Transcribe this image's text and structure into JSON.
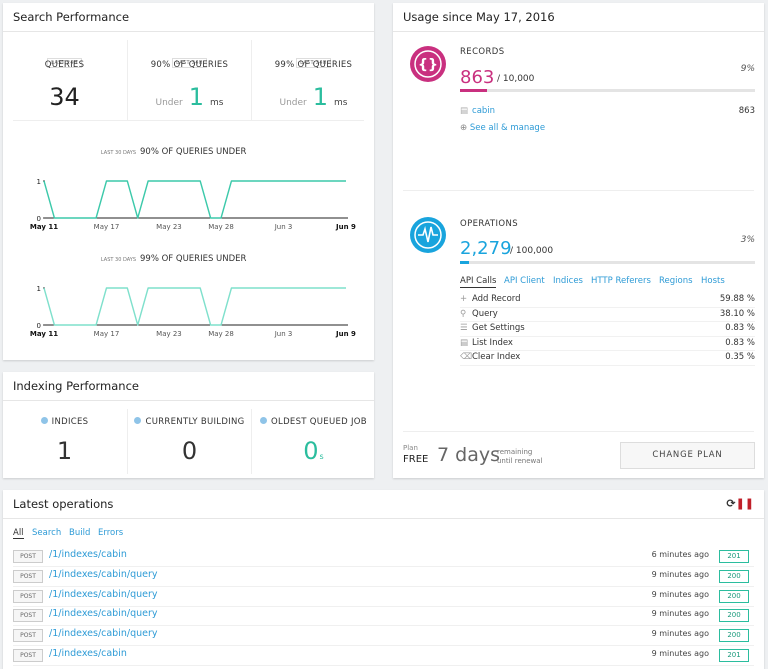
{
  "search": {
    "title": "Search Performance",
    "stats": [
      {
        "badge": "LAST 24H",
        "label": "QUERIES",
        "value": "34"
      },
      {
        "badge": "LAST 24H",
        "label": "90% OF QUERIES",
        "prefix": "Under",
        "value": "1",
        "unit": "ms"
      },
      {
        "badge": "LAST 24H",
        "label": "99% OF QUERIES",
        "prefix": "Under",
        "value": "1",
        "unit": "ms"
      }
    ]
  },
  "chart_data": [
    {
      "type": "line",
      "badge": "LAST 30 DAYS",
      "title": "90% OF QUERIES UNDER",
      "color": "#3cc9aa",
      "categories": [
        "May 11",
        null,
        null,
        null,
        null,
        null,
        "May 17",
        null,
        null,
        null,
        null,
        null,
        "May 23",
        null,
        null,
        null,
        null,
        "May 28",
        null,
        null,
        null,
        null,
        null,
        "Jun 3",
        null,
        null,
        null,
        null,
        null,
        "Jun 9"
      ],
      "values": [
        1,
        0,
        0,
        0,
        0,
        0,
        1,
        1,
        1,
        0,
        1,
        1,
        1,
        1,
        1,
        1,
        0,
        0,
        1,
        1,
        1,
        1,
        1,
        1,
        1,
        1,
        1,
        1,
        1,
        1
      ],
      "ylim": [
        0,
        1
      ],
      "yticks": [
        0,
        1
      ]
    },
    {
      "type": "line",
      "badge": "LAST 30 DAYS",
      "title": "99% OF QUERIES UNDER",
      "color": "#7fe0cc",
      "categories": [
        "May 11",
        null,
        null,
        null,
        null,
        null,
        "May 17",
        null,
        null,
        null,
        null,
        null,
        "May 23",
        null,
        null,
        null,
        null,
        "May 28",
        null,
        null,
        null,
        null,
        null,
        "Jun 3",
        null,
        null,
        null,
        null,
        null,
        "Jun 9"
      ],
      "values": [
        1,
        0,
        0,
        0,
        0,
        0,
        1,
        1,
        1,
        0,
        1,
        1,
        1,
        1,
        1,
        1,
        0,
        0,
        1,
        1,
        1,
        1,
        1,
        1,
        1,
        1,
        1,
        1,
        1,
        1
      ],
      "ylim": [
        0,
        1
      ],
      "yticks": [
        0,
        1
      ]
    }
  ],
  "indexing": {
    "title": "Indexing Performance",
    "stats": [
      {
        "label": "INDICES",
        "value": "1"
      },
      {
        "label": "CURRENTLY BUILDING",
        "value": "0"
      },
      {
        "label": "OLDEST QUEUED JOB",
        "value": "0",
        "unit": "s"
      }
    ]
  },
  "usage": {
    "title": "Usage since May 17, 2016",
    "records": {
      "label": "RECORDS",
      "count": "863",
      "limit": "/ 10,000",
      "percent": {
        "value": 9,
        "label": "9%"
      },
      "indices": [
        {
          "name": "cabin",
          "count": "863"
        }
      ],
      "link": "See all & manage"
    },
    "operations": {
      "label": "OPERATIONS",
      "count": "2,279",
      "limit": "/ 100,000",
      "percent": {
        "value": 3,
        "label": "3%"
      },
      "tabs": [
        "API Calls",
        "API Client",
        "Indices",
        "HTTP Referers",
        "Regions",
        "Hosts"
      ],
      "rows": [
        {
          "name": "Add Record",
          "share": "59.88 %"
        },
        {
          "name": "Query",
          "share": "38.10 %"
        },
        {
          "name": "Get Settings",
          "share": "0.83 %"
        },
        {
          "name": "List Index",
          "share": "0.83 %"
        },
        {
          "name": "Clear Index",
          "share": "0.35 %"
        }
      ]
    },
    "plan": {
      "label": "Plan",
      "name": "FREE",
      "days": "7 days",
      "remaining": "remaining",
      "renewal": "until renewal",
      "button": "CHANGE PLAN"
    }
  },
  "operations_log": {
    "title": "Latest operations",
    "tabs": [
      "All",
      "Search",
      "Build",
      "Errors"
    ],
    "rows": [
      {
        "method": "POST",
        "path": "/1/indexes/cabin",
        "time": "6 minutes ago",
        "status": "201"
      },
      {
        "method": "POST",
        "path": "/1/indexes/cabin/query",
        "time": "9 minutes ago",
        "status": "200"
      },
      {
        "method": "POST",
        "path": "/1/indexes/cabin/query",
        "time": "9 minutes ago",
        "status": "200"
      },
      {
        "method": "POST",
        "path": "/1/indexes/cabin/query",
        "time": "9 minutes ago",
        "status": "200"
      },
      {
        "method": "POST",
        "path": "/1/indexes/cabin/query",
        "time": "9 minutes ago",
        "status": "200"
      },
      {
        "method": "POST",
        "path": "/1/indexes/cabin",
        "time": "9 minutes ago",
        "status": "201"
      }
    ]
  }
}
